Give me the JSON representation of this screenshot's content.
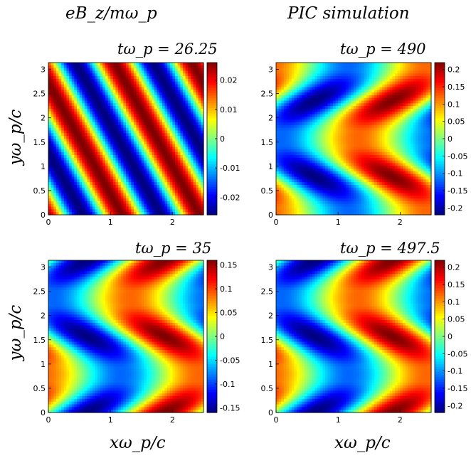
{
  "figure": {
    "col_titles": [
      "eB_z/mω_p",
      "PIC simulation"
    ],
    "ylabel": "yω_p/c",
    "xlabel": "xω_p/c"
  },
  "colormap": [
    "#00007f",
    "#0000ff",
    "#007fff",
    "#00ffff",
    "#7fff7f",
    "#ffff00",
    "#ff7f00",
    "#ff0000",
    "#7f0000"
  ],
  "chart_data": [
    {
      "type": "heatmap",
      "title": "tω_p = 26.25",
      "xlabel": "",
      "ylabel": "",
      "xlim": [
        0,
        2.5
      ],
      "ylim": [
        0,
        3.14
      ],
      "xticks": [
        "0",
        "1",
        "2"
      ],
      "yticks": [
        "0",
        "0.5",
        "1",
        "1.5",
        "2",
        "2.5",
        "3"
      ],
      "colorbar": {
        "range": [
          -0.026,
          0.026
        ],
        "ticks": [
          "-0.02",
          "-0.01",
          "0",
          "0.01",
          "0.02"
        ],
        "tick_values": [
          -0.02,
          -0.01,
          0,
          0.01,
          0.02
        ]
      },
      "field": {
        "form": "plane_wave",
        "amplitude": 0.026,
        "kx_per_unit": 0.8,
        "ky_per_unit": 0.35,
        "phase_cycles": 0.05
      }
    },
    {
      "type": "heatmap",
      "title": "tω_p = 490",
      "xlabel": "",
      "ylabel": "",
      "xlim": [
        0,
        2.5
      ],
      "ylim": [
        0,
        3.14
      ],
      "xticks": [
        "0",
        "1",
        "2"
      ],
      "yticks": [
        "0",
        "0.5",
        "1",
        "1.5",
        "2",
        "2.5",
        "3"
      ],
      "colorbar": {
        "range": [
          -0.22,
          0.22
        ],
        "ticks": [
          "-0.2",
          "-0.15",
          "-0.1",
          "-0.05",
          "0",
          "0.05",
          "0.1",
          "0.15",
          "0.2"
        ],
        "tick_values": [
          -0.2,
          -0.15,
          -0.1,
          -0.05,
          0,
          0.05,
          0.1,
          0.15,
          0.2
        ]
      },
      "field": {
        "form": "tilted_mode",
        "amplitude": 0.22,
        "x_shift": 0.22,
        "y_period": 3.14,
        "y_phase": 0.25
      }
    },
    {
      "type": "heatmap",
      "title": "tω_p = 35",
      "xlabel": "",
      "ylabel": "",
      "xlim": [
        0,
        2.5
      ],
      "ylim": [
        0,
        3.14
      ],
      "xticks": [
        "0",
        "1",
        "2"
      ],
      "yticks": [
        "0",
        "0.5",
        "1",
        "1.5",
        "2",
        "2.5",
        "3"
      ],
      "colorbar": {
        "range": [
          -0.16,
          0.16
        ],
        "ticks": [
          "-0.15",
          "-0.1",
          "-0.05",
          "0",
          "0.05",
          "0.1",
          "0.15"
        ],
        "tick_values": [
          -0.15,
          -0.1,
          -0.05,
          0,
          0.05,
          0.1,
          0.15
        ]
      },
      "field": {
        "form": "tilted_mode",
        "amplitude": 0.16,
        "x_shift": 0.22,
        "y_period": 3.14,
        "y_phase": 0.0
      }
    },
    {
      "type": "heatmap",
      "title": "tω_p = 497.5",
      "xlabel": "",
      "ylabel": "",
      "xlim": [
        0,
        2.5
      ],
      "ylim": [
        0,
        3.14
      ],
      "xticks": [
        "0",
        "1",
        "2"
      ],
      "yticks": [
        "0",
        "0.5",
        "1",
        "1.5",
        "2",
        "2.5",
        "3"
      ],
      "colorbar": {
        "range": [
          -0.22,
          0.22
        ],
        "ticks": [
          "-0.2",
          "-0.15",
          "-0.1",
          "-0.05",
          "0",
          "0.05",
          "0.1",
          "0.15",
          "0.2"
        ],
        "tick_values": [
          -0.2,
          -0.15,
          -0.1,
          -0.05,
          0,
          0.05,
          0.1,
          0.15,
          0.2
        ]
      },
      "field": {
        "form": "tilted_mode",
        "amplitude": 0.22,
        "x_shift": 0.22,
        "y_period": 3.14,
        "y_phase": 0.0
      }
    }
  ]
}
